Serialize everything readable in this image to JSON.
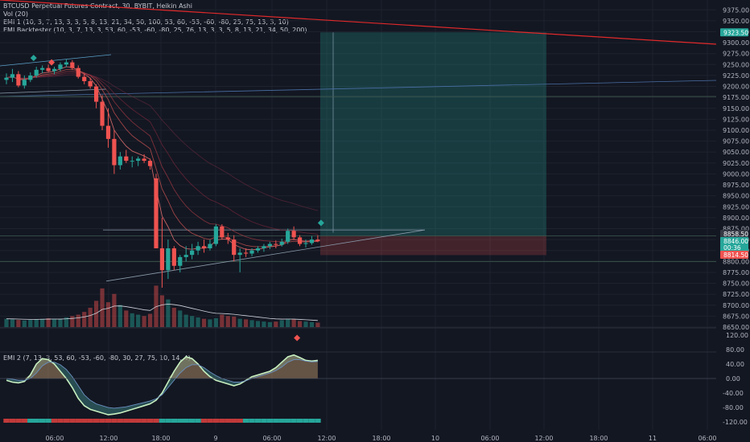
{
  "legend": {
    "main": "BTCUSD Perpetual Futures Contract, 30, BYBIT, Heikin Ashi",
    "vol": "Vol (20)",
    "emi1": "EMI 1 (10, 3, 7, 13, 3, 3, 5, 8, 13, 21, 34, 50, 100, 53, 60, -53, -60, -80, 25, 75, 13, 3, 10)",
    "backtester": "EMI Backtester (10, 3, 7, 13, 3, 53, 60, -53, -60, -80, 25, 76, 13, 3, 3, 5, 8, 13, 21, 34, 50, 200)",
    "emi2": "EMI 2 (7, 13, 3, 53, 60, -53, -60, -80, 30, 27, 75, 10, 14, 4)"
  },
  "colors": {
    "bg": "#131722",
    "up": "#26a69a",
    "down": "#ef5350",
    "grid": "#1e222d",
    "axis_text": "#b2b5be"
  },
  "chart_data": [
    {
      "type": "candlestick",
      "name": "price",
      "ylim": [
        8650,
        9400
      ],
      "y_ticks": [
        "9375.00",
        "9350.00",
        "9325.00",
        "9300.00",
        "9275.00",
        "9250.00",
        "9225.00",
        "9200.00",
        "9175.00",
        "9150.00",
        "9125.00",
        "9100.00",
        "9075.00",
        "9050.00",
        "9025.00",
        "9000.00",
        "8975.00",
        "8950.00",
        "8925.00",
        "8900.00",
        "8875.00",
        "8850.00",
        "8825.00",
        "8800.00",
        "8775.00",
        "8750.00",
        "8725.00",
        "8700.00",
        "8675.00",
        "8650.00"
      ],
      "x_ticks": [
        "06:00",
        "12:00",
        "18:00",
        "9",
        "06:00",
        "12:00",
        "18:00",
        "10",
        "06:00",
        "12:00",
        "18:00",
        "11",
        "06:00"
      ],
      "price_tags": [
        {
          "label": "9323.50",
          "value": 9323.5,
          "color": "#26a69a"
        },
        {
          "label": "8858.50",
          "value": 8858.5,
          "color": "#363a45"
        },
        {
          "label": "8846.00",
          "value": 8846,
          "color": "#26a69a"
        },
        {
          "label": "00:36",
          "value": 8836,
          "color": "#26a69a"
        },
        {
          "label": "8814.50",
          "value": 8814.5,
          "color": "#ef5350"
        }
      ],
      "position": {
        "entry": 8858.5,
        "target": 9323.5,
        "stop": 8814.5
      },
      "candles": [
        [
          9215,
          9230,
          9205,
          9220
        ],
        [
          9220,
          9240,
          9210,
          9228
        ],
        [
          9228,
          9235,
          9198,
          9202
        ],
        [
          9202,
          9225,
          9195,
          9215
        ],
        [
          9215,
          9232,
          9210,
          9225
        ],
        [
          9225,
          9245,
          9220,
          9238
        ],
        [
          9238,
          9248,
          9230,
          9242
        ],
        [
          9242,
          9250,
          9232,
          9235
        ],
        [
          9235,
          9245,
          9228,
          9240
        ],
        [
          9240,
          9255,
          9235,
          9250
        ],
        [
          9250,
          9262,
          9244,
          9255
        ],
        [
          9255,
          9260,
          9238,
          9242
        ],
        [
          9242,
          9248,
          9218,
          9222
        ],
        [
          9222,
          9230,
          9205,
          9212
        ],
        [
          9212,
          9220,
          9195,
          9200
        ],
        [
          9200,
          9205,
          9150,
          9165
        ],
        [
          9165,
          9180,
          9100,
          9110
        ],
        [
          9110,
          9150,
          9060,
          9080
        ],
        [
          9080,
          9100,
          9000,
          9020
        ],
        [
          9020,
          9050,
          9010,
          9040
        ],
        [
          9040,
          9055,
          9025,
          9030
        ],
        [
          9030,
          9040,
          9015,
          9030
        ],
        [
          9030,
          9040,
          9018,
          9035
        ],
        [
          9035,
          9045,
          9025,
          9030
        ],
        [
          9030,
          9035,
          9010,
          9018
        ],
        [
          8990,
          9000,
          8830,
          8830
        ],
        [
          8830,
          8900,
          8740,
          8780
        ],
        [
          8780,
          8850,
          8760,
          8830
        ],
        [
          8830,
          8835,
          8780,
          8790
        ],
        [
          8790,
          8815,
          8775,
          8810
        ],
        [
          8810,
          8835,
          8800,
          8815
        ],
        [
          8815,
          8840,
          8805,
          8825
        ],
        [
          8825,
          8845,
          8815,
          8835
        ],
        [
          8835,
          8850,
          8820,
          8830
        ],
        [
          8830,
          8850,
          8825,
          8840
        ],
        [
          8840,
          8885,
          8835,
          8880
        ],
        [
          8880,
          8885,
          8850,
          8855
        ],
        [
          8855,
          8865,
          8840,
          8850
        ],
        [
          8850,
          8860,
          8800,
          8815
        ],
        [
          8815,
          8830,
          8775,
          8820
        ],
        [
          8820,
          8830,
          8810,
          8818
        ],
        [
          8818,
          8830,
          8812,
          8825
        ],
        [
          8825,
          8835,
          8820,
          8830
        ],
        [
          8830,
          8840,
          8822,
          8835
        ],
        [
          8835,
          8845,
          8828,
          8840
        ],
        [
          8840,
          8848,
          8830,
          8838
        ],
        [
          8838,
          8852,
          8834,
          8845
        ],
        [
          8845,
          8875,
          8840,
          8870
        ],
        [
          8870,
          8880,
          8850,
          8855
        ],
        [
          8855,
          8860,
          8835,
          8840
        ],
        [
          8840,
          8850,
          8832,
          8842
        ],
        [
          8842,
          8858,
          8838,
          8850
        ],
        [
          8850,
          8860,
          8844,
          8846
        ]
      ],
      "volume": [
        30,
        28,
        26,
        24,
        26,
        28,
        30,
        32,
        30,
        28,
        35,
        40,
        45,
        55,
        70,
        95,
        140,
        90,
        120,
        80,
        60,
        50,
        45,
        40,
        48,
        150,
        115,
        100,
        70,
        60,
        45,
        40,
        35,
        30,
        28,
        32,
        45,
        40,
        38,
        30,
        28,
        25,
        22,
        20,
        18,
        20,
        25,
        30,
        28,
        22,
        20,
        18,
        16
      ]
    },
    {
      "type": "area",
      "name": "EMI 2",
      "ylim": [
        -130,
        130
      ],
      "y_ticks": [
        "120.00",
        "80.00",
        "40.00",
        "0.00",
        "-40.00",
        "-80.00",
        "-120.00"
      ],
      "fast": [
        -5,
        -10,
        -12,
        -8,
        10,
        40,
        55,
        52,
        40,
        20,
        0,
        -25,
        -55,
        -75,
        -85,
        -90,
        -95,
        -100,
        -98,
        -95,
        -90,
        -85,
        -80,
        -75,
        -70,
        -60,
        -40,
        -10,
        20,
        45,
        60,
        55,
        40,
        20,
        5,
        -5,
        -10,
        -15,
        -20,
        -15,
        -5,
        5,
        10,
        15,
        20,
        30,
        45,
        60,
        65,
        58,
        50,
        48,
        50
      ],
      "slow": [
        0,
        -2,
        -5,
        -5,
        0,
        15,
        35,
        45,
        45,
        38,
        25,
        5,
        -20,
        -45,
        -60,
        -70,
        -75,
        -80,
        -82,
        -80,
        -78,
        -74,
        -70,
        -66,
        -62,
        -56,
        -45,
        -25,
        -5,
        15,
        30,
        38,
        38,
        30,
        18,
        8,
        0,
        -5,
        -10,
        -10,
        -6,
        0,
        5,
        10,
        15,
        22,
        32,
        45,
        52,
        52,
        48,
        46,
        47
      ]
    }
  ]
}
